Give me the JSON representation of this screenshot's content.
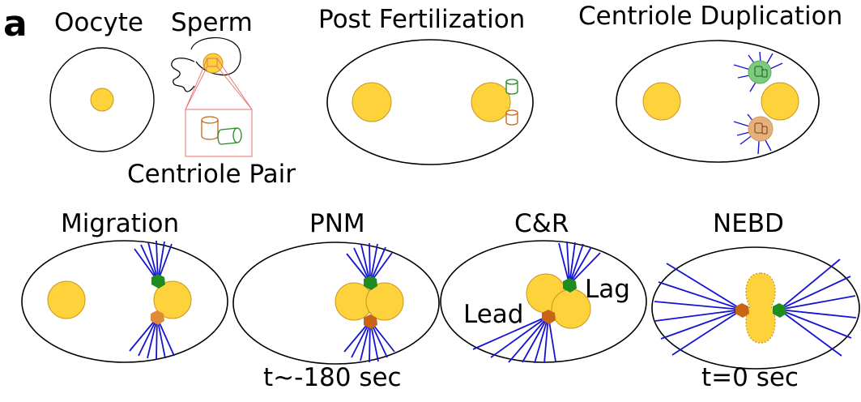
{
  "panel_label": "a",
  "stages": {
    "oocyte": "Oocyte",
    "sperm": "Sperm",
    "centriole_pair": "Centriole Pair",
    "post_fertilization": "Post Fertilization",
    "centriole_duplication": "Centriole Duplication",
    "migration": "Migration",
    "pnm": "PNM",
    "cr": "C&R",
    "nebd": "NEBD"
  },
  "annotations": {
    "lead": "Lead",
    "lag": "Lag"
  },
  "times": {
    "pnm": "t~-180 sec",
    "nebd": "t=0 sec"
  },
  "colors": {
    "pronucleus_fill": "#FDD23A",
    "pronucleus_stroke": "#C8961E",
    "green_centriole": "#1E8C1E",
    "orange_centriole": "#C86414",
    "microtubule": "#1414D2",
    "sperm_box": "#E8706A"
  }
}
